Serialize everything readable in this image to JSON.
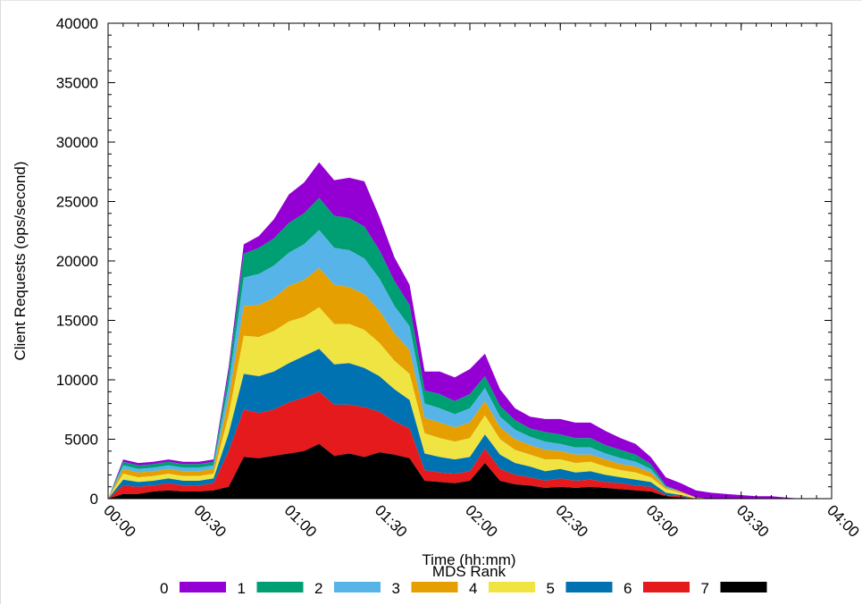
{
  "chart_data": {
    "type": "area",
    "stacked": true,
    "title": "",
    "xlabel": "Time (hh:mm)",
    "ylabel": "Client Requests (ops/second)",
    "legend_title": "MDS Rank",
    "legend_position": "bottom",
    "grid": false,
    "ylim": [
      0,
      40000
    ],
    "xlim_minutes": [
      0,
      240
    ],
    "x_tick_labels": [
      "00:00",
      "00:30",
      "01:00",
      "01:30",
      "02:00",
      "02:30",
      "03:00",
      "03:30",
      "04:00"
    ],
    "y_tick_labels": [
      "0",
      "5000",
      "10000",
      "15000",
      "20000",
      "25000",
      "30000",
      "35000",
      "40000"
    ],
    "x": [
      "00:00",
      "00:05",
      "00:10",
      "00:15",
      "00:20",
      "00:25",
      "00:30",
      "00:35",
      "00:40",
      "00:45",
      "00:50",
      "00:55",
      "01:00",
      "01:05",
      "01:10",
      "01:15",
      "01:20",
      "01:25",
      "01:30",
      "01:35",
      "01:40",
      "01:45",
      "01:50",
      "01:55",
      "02:00",
      "02:05",
      "02:10",
      "02:15",
      "02:20",
      "02:25",
      "02:30",
      "02:35",
      "02:40",
      "02:45",
      "02:50",
      "02:55",
      "03:00",
      "03:05",
      "03:10",
      "03:15",
      "03:20",
      "03:25",
      "03:30",
      "03:35",
      "03:40",
      "03:45",
      "03:50"
    ],
    "series": [
      {
        "name": "7",
        "color": "#000000",
        "values": [
          0,
          400,
          400,
          600,
          700,
          600,
          600,
          700,
          1000,
          3500,
          3400,
          3600,
          3800,
          4000,
          4600,
          3600,
          3800,
          3500,
          3900,
          3700,
          3400,
          1500,
          1400,
          1300,
          1500,
          3000,
          1500,
          1200,
          1100,
          900,
          1000,
          900,
          1000,
          900,
          800,
          700,
          600,
          200,
          100,
          0,
          0,
          0,
          0,
          0,
          0,
          0,
          0
        ]
      },
      {
        "name": "6",
        "color": "#e41a1c",
        "values": [
          0,
          700,
          600,
          500,
          600,
          500,
          500,
          600,
          3000,
          4000,
          3800,
          3900,
          4300,
          4500,
          4400,
          4300,
          4100,
          4200,
          3400,
          2800,
          2500,
          900,
          800,
          800,
          800,
          1200,
          1000,
          800,
          700,
          600,
          700,
          600,
          600,
          500,
          500,
          400,
          400,
          100,
          100,
          0,
          0,
          0,
          0,
          0,
          0,
          0,
          0
        ]
      },
      {
        "name": "5",
        "color": "#0072b2",
        "values": [
          0,
          500,
          400,
          400,
          400,
          400,
          400,
          400,
          1500,
          3000,
          3100,
          3200,
          3300,
          3500,
          3600,
          3400,
          3500,
          3300,
          3000,
          2700,
          2400,
          1400,
          1300,
          1200,
          1200,
          1200,
          1200,
          1000,
          900,
          800,
          800,
          700,
          700,
          600,
          500,
          500,
          400,
          200,
          100,
          0,
          0,
          0,
          0,
          0,
          0,
          0,
          0
        ]
      },
      {
        "name": "4",
        "color": "#f0e442",
        "values": [
          0,
          500,
          400,
          400,
          400,
          400,
          400,
          400,
          1500,
          3200,
          3300,
          3400,
          3500,
          3300,
          3500,
          3400,
          3300,
          3200,
          2800,
          2400,
          2200,
          1700,
          1600,
          1500,
          1600,
          1600,
          1300,
          1100,
          1000,
          1000,
          800,
          800,
          800,
          700,
          600,
          600,
          400,
          300,
          200,
          100,
          0,
          0,
          0,
          0,
          0,
          0,
          0
        ]
      },
      {
        "name": "3",
        "color": "#e69f00",
        "values": [
          0,
          400,
          400,
          400,
          400,
          400,
          400,
          400,
          1400,
          2500,
          2700,
          2800,
          3000,
          3100,
          3300,
          3300,
          3100,
          3000,
          2700,
          2300,
          2000,
          1300,
          1300,
          1200,
          1300,
          1200,
          1000,
          900,
          800,
          800,
          700,
          700,
          600,
          600,
          500,
          500,
          400,
          100,
          100,
          0,
          0,
          0,
          0,
          0,
          0,
          0,
          0
        ]
      },
      {
        "name": "2",
        "color": "#56b4e9",
        "values": [
          0,
          300,
          300,
          300,
          300,
          300,
          300,
          300,
          1200,
          2400,
          2600,
          2700,
          2800,
          3000,
          3200,
          3100,
          3100,
          3000,
          2700,
          2300,
          2000,
          1200,
          1200,
          1100,
          1200,
          1100,
          900,
          800,
          700,
          700,
          600,
          600,
          600,
          500,
          500,
          400,
          300,
          100,
          0,
          0,
          0,
          0,
          0,
          0,
          0,
          0,
          0
        ]
      },
      {
        "name": "1",
        "color": "#009e73",
        "values": [
          0,
          300,
          300,
          300,
          300,
          300,
          300,
          300,
          1000,
          2000,
          2200,
          2300,
          2500,
          2600,
          2700,
          2700,
          2700,
          2700,
          2400,
          2100,
          1800,
          1100,
          1200,
          1100,
          1200,
          1000,
          900,
          800,
          700,
          800,
          800,
          800,
          800,
          700,
          700,
          600,
          400,
          100,
          0,
          0,
          0,
          0,
          0,
          0,
          0,
          0,
          0
        ]
      },
      {
        "name": "0",
        "color": "#9400d3",
        "values": [
          0,
          200,
          200,
          200,
          200,
          200,
          200,
          200,
          500,
          800,
          1000,
          1600,
          2400,
          2600,
          3000,
          3000,
          3400,
          3800,
          2800,
          2000,
          1700,
          1600,
          1900,
          2000,
          2100,
          1900,
          1400,
          1000,
          1000,
          1100,
          1300,
          1300,
          1300,
          1200,
          1000,
          900,
          600,
          700,
          700,
          600,
          500,
          400,
          300,
          200,
          200,
          100,
          0
        ]
      }
    ],
    "legend_order": [
      "0",
      "1",
      "2",
      "3",
      "4",
      "5",
      "6",
      "7"
    ]
  }
}
